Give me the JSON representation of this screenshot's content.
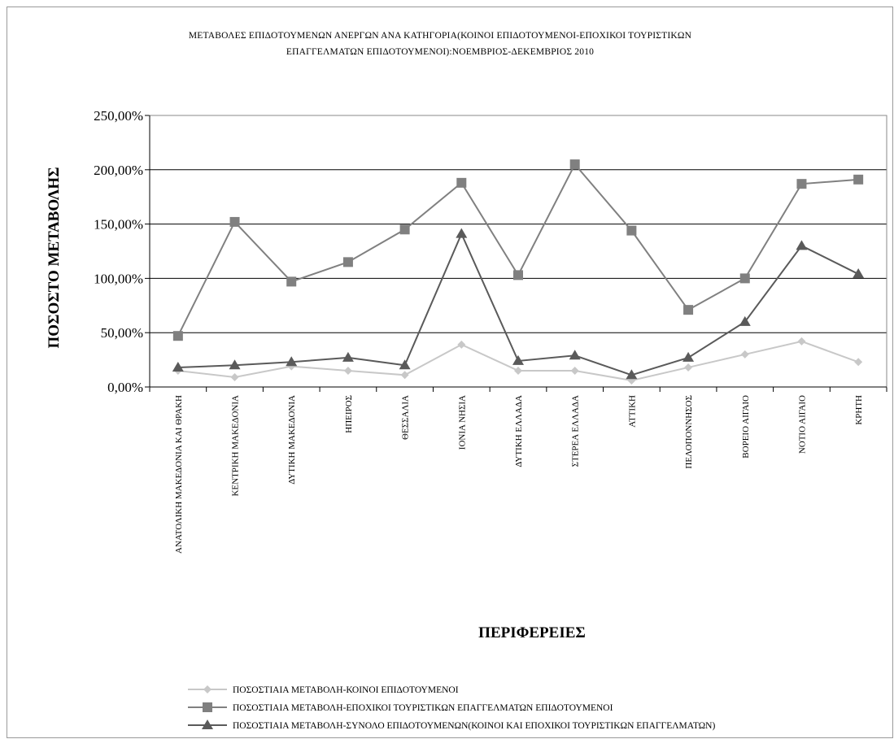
{
  "chart_data": {
    "type": "line",
    "title_line1": "ΜΕΤΑΒΟΛΕΣ ΕΠΙΔΟΤΟΥΜΕΝΩΝ ΑΝΕΡΓΩΝ ΑΝΑ ΚΑΤΗΓΟΡΙΑ(ΚΟΙΝΟΙ ΕΠΙΔΟΤΟΥΜΕΝΟΙ-ΕΠΟΧΙΚΟΙ ΤΟΥΡΙΣΤΙΚΩΝ",
    "title_line2": "ΕΠΑΓΓΕΛΜΑΤΩΝ ΕΠΙΔΟΤΟΥΜΕΝΟΙ):ΝΟΕΜΒΡΙΟΣ-ΔΕΚΕΜΒΡΙΟΣ 2010",
    "xlabel": "ΠΕΡΙΦΕΡΕΙΕΣ",
    "ylabel": "ΠΟΣΟΣΤΟ ΜΕΤΑΒΟΛΗΣ",
    "ylim": [
      0,
      250
    ],
    "yticks": [
      0,
      50,
      100,
      150,
      200,
      250
    ],
    "ytick_labels": [
      "0,00%",
      "50,00%",
      "100,00%",
      "150,00%",
      "200,00%",
      "250,00%"
    ],
    "grid": "horizontal",
    "legend_position": "bottom",
    "categories": [
      "ΑΝΑΤΟΛΙΚΗ ΜΑΚΕΔΟΝΙΑ ΚΑΙ ΘΡΑΚΗ",
      "ΚΕΝΤΡΙΚΗ ΜΑΚΕΔΟΝΙΑ",
      "ΔΥΤΙΚΗ ΜΑΚΕΔΟΝΙΑ",
      "ΗΠΕΙΡΟΣ",
      "ΘΕΣΣΑΛΙΑ",
      "ΙΟΝΙΑ ΝΗΣΙΑ",
      "ΔΥΤΙΚΗ ΕΛΛΑΔΑ",
      "ΣΤΕΡΕΑ ΕΛΛΑΔΑ",
      "ΑΤΤΙΚΗ",
      "ΠΕΛΟΠΟΝΝΗΣΟΣ",
      "ΒΟΡΕΙΟ ΑΙΓΑΙΟ",
      "ΝΟΤΙΟ ΑΙΓΑΙΟ",
      "ΚΡΗΤΗ"
    ],
    "series": [
      {
        "name": "ΠΟΣΟΣΤΙΑΙΑ ΜΕΤΑΒΟΛΗ-ΚΟΙΝΟΙ ΕΠΙΔΟΤΟΥΜΕΝΟΙ",
        "marker": "diamond",
        "color": "#c8c8c8",
        "values": [
          15,
          9,
          19,
          15,
          11,
          39,
          15,
          15,
          6,
          18,
          30,
          42,
          23
        ]
      },
      {
        "name": "ΠΟΣΟΣΤΙΑΙΑ ΜΕΤΑΒΟΛΗ-ΕΠΟΧΙΚΟΙ ΤΟΥΡΙΣΤΙΚΩΝ ΕΠΑΓΓΕΛΜΑΤΩΝ ΕΠΙΔΟΤΟΥΜΕΝΟΙ",
        "marker": "square",
        "color": "#808080",
        "values": [
          47,
          152,
          97,
          115,
          145,
          188,
          103,
          205,
          144,
          71,
          100,
          187,
          191
        ]
      },
      {
        "name": "ΠΟΣΟΣΤΙΑΙΑ ΜΕΤΑΒΟΛΗ-ΣΥΝΟΛΟ ΕΠΙΔΟΤΟΥΜΕΝΩΝ(ΚΟΙΝΟΙ ΚΑΙ ΕΠΟΧΙΚΟΙ ΤΟΥΡΙΣΤΙΚΩΝ ΕΠΑΓΓΕΛΜΑΤΩΝ)",
        "marker": "triangle",
        "color": "#5a5a5a",
        "values": [
          18,
          20,
          23,
          27,
          20,
          141,
          24,
          29,
          11,
          27,
          60,
          130,
          104
        ]
      }
    ]
  }
}
